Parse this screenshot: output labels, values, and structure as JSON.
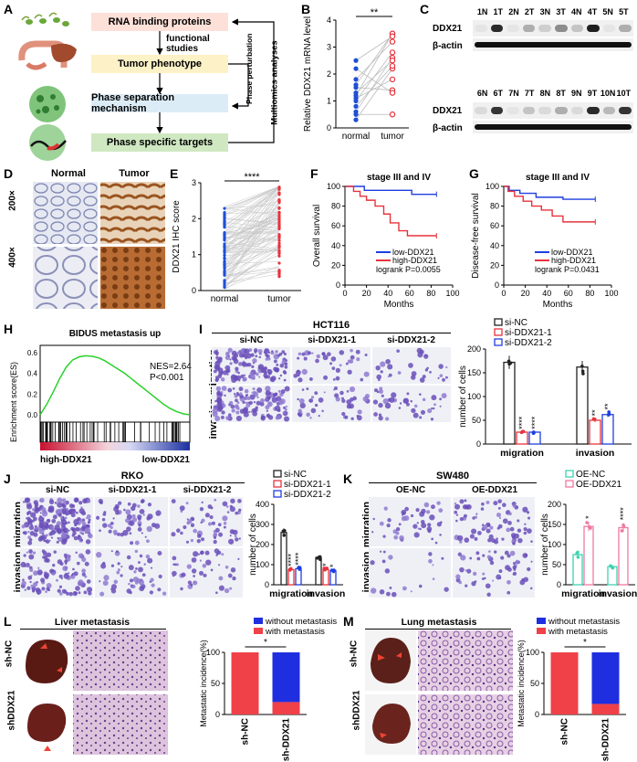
{
  "panel_letters": {
    "A": "A",
    "B": "B",
    "C": "C",
    "D": "D",
    "E": "E",
    "F": "F",
    "G": "G",
    "H": "H",
    "I": "I",
    "J": "J",
    "K": "K",
    "L": "L",
    "M": "M"
  },
  "panelA": {
    "boxes": [
      "RNA binding proteins",
      "Tumor phenotype",
      "Phase separation mechanism",
      "Phase specific targets"
    ],
    "functional_studies": [
      "functional",
      "studies"
    ],
    "side_labels": [
      "Phase perturbation",
      "Multiomics analyses"
    ],
    "colors": {
      "box1": "#fde0d8",
      "box2": "#fdf1c7",
      "box3": "#dcecf7",
      "box4": "#cfe8c2"
    }
  },
  "panelB": {
    "chart_data": {
      "type": "scatter",
      "categories": [
        "normal",
        "tumor"
      ],
      "ylabel": "Relative DDX21 mRNA level",
      "ylim": [
        0,
        4
      ],
      "yticks": [
        0,
        1,
        2,
        3,
        4
      ],
      "pairs": [
        [
          0.3,
          2.2
        ],
        [
          0.6,
          2.6
        ],
        [
          0.8,
          2.3
        ],
        [
          1.0,
          2.8
        ],
        [
          1.1,
          1.8
        ],
        [
          1.2,
          3.5
        ],
        [
          1.3,
          2.5
        ],
        [
          1.5,
          1.4
        ],
        [
          1.6,
          3.5
        ],
        [
          1.8,
          3.2
        ],
        [
          2.2,
          1.3
        ],
        [
          2.5,
          3.4
        ],
        [
          0.5,
          0.5
        ]
      ],
      "significance": "**",
      "colors": {
        "normal": "#1f4fd6",
        "tumor": "#e8323c"
      }
    }
  },
  "panelC": {
    "row1_lanes": [
      "1N",
      "1T",
      "2N",
      "2T",
      "3N",
      "3T",
      "4N",
      "4T",
      "5N",
      "5T"
    ],
    "row2_lanes": [
      "6N",
      "6T",
      "7N",
      "7T",
      "8N",
      "8T",
      "9N",
      "9T",
      "10N",
      "10T"
    ],
    "ddx21_1": [
      0.05,
      0.9,
      0.05,
      0.3,
      0.15,
      0.45,
      0.2,
      0.95,
      0.05,
      0.3
    ],
    "ddx21_2": [
      0.1,
      0.85,
      0.05,
      0.2,
      0.1,
      0.3,
      0.1,
      0.9,
      0.25,
      0.85
    ],
    "row_labels": [
      "DDX21",
      "β-actin"
    ]
  },
  "panelD": {
    "cols": [
      "Normal",
      "Tumor"
    ],
    "rows": [
      "200×",
      "400×"
    ]
  },
  "panelE": {
    "chart_data": {
      "type": "scatter",
      "categories": [
        "normal",
        "tumor"
      ],
      "ylabel": "DDX21 IHC score",
      "ylim": [
        0,
        3
      ],
      "yticks": [
        0,
        1,
        2,
        3
      ],
      "significance": "****",
      "colors": {
        "normal": "#1f4fd6",
        "tumor": "#e8323c"
      }
    }
  },
  "panelF": {
    "chart_data": {
      "type": "line",
      "title": "stage III and IV",
      "xlabel": "Months",
      "ylabel": "Overall survival",
      "xlim": [
        0,
        100
      ],
      "ylim": [
        0,
        100
      ],
      "xticks": [
        0,
        20,
        40,
        60,
        80,
        100
      ],
      "yticks": [
        0,
        20,
        40,
        60,
        80,
        100
      ],
      "series": [
        {
          "name": "low-DDX21",
          "color": "#1f3fe0",
          "x": [
            0,
            18,
            18,
            62,
            62,
            85
          ],
          "y": [
            100,
            100,
            96,
            96,
            92,
            92
          ]
        },
        {
          "name": "high-DDX21",
          "color": "#e8323c",
          "x": [
            0,
            8,
            8,
            14,
            14,
            20,
            20,
            28,
            28,
            36,
            36,
            42,
            42,
            50,
            50,
            58,
            58,
            85
          ],
          "y": [
            100,
            100,
            95,
            95,
            90,
            90,
            86,
            86,
            80,
            80,
            72,
            72,
            63,
            63,
            55,
            55,
            50,
            50
          ]
        }
      ],
      "annotation": "logrank P=0.0055"
    }
  },
  "panelG": {
    "chart_data": {
      "type": "line",
      "title": "stage III and IV",
      "xlabel": "Months",
      "ylabel": "Disease-free survival",
      "xlim": [
        0,
        100
      ],
      "ylim": [
        0,
        100
      ],
      "xticks": [
        0,
        20,
        40,
        60,
        80,
        100
      ],
      "yticks": [
        0,
        20,
        40,
        60,
        80,
        100
      ],
      "series": [
        {
          "name": "low-DDX21",
          "color": "#1f3fe0",
          "x": [
            0,
            5,
            5,
            15,
            15,
            30,
            30,
            55,
            55,
            85
          ],
          "y": [
            100,
            100,
            96,
            96,
            93,
            93,
            89,
            89,
            87,
            87
          ]
        },
        {
          "name": "high-DDX21",
          "color": "#e8323c",
          "x": [
            0,
            4,
            4,
            10,
            10,
            18,
            18,
            26,
            26,
            35,
            35,
            45,
            45,
            55,
            55,
            85
          ],
          "y": [
            100,
            100,
            95,
            95,
            90,
            90,
            85,
            85,
            80,
            80,
            76,
            76,
            70,
            70,
            64,
            64
          ]
        }
      ],
      "annotation": "logrank P=0.0431"
    }
  },
  "panelH": {
    "title": "BIDUS metastasis up",
    "ylabel": "Enrichment score(ES)",
    "yticks": [
      "0.6",
      "0.4",
      "0.2",
      "0.0"
    ],
    "nes": "NES=2.64",
    "p": "P<0.001",
    "left_label": "high-DDX21",
    "right_label": "low-DDX21",
    "curve": [
      0,
      0.1,
      0.22,
      0.35,
      0.46,
      0.53,
      0.56,
      0.57,
      0.565,
      0.55,
      0.52,
      0.48,
      0.44,
      0.4,
      0.35,
      0.3,
      0.25,
      0.2,
      0.15,
      0.1,
      0.06,
      0.03,
      0.01,
      0
    ]
  },
  "panelI": {
    "cell_line": "HCT116",
    "cols": [
      "si-NC",
      "si-DDX21-1",
      "si-DDX21-2"
    ],
    "rows": [
      "migration",
      "invasion"
    ],
    "chart_data": {
      "type": "bar",
      "categories": [
        "migration",
        "invasion"
      ],
      "ylabel": "number of cells",
      "ylim": [
        0,
        200
      ],
      "yticks": [
        0,
        50,
        100,
        150,
        200
      ],
      "series": [
        {
          "name": "si-NC",
          "values": [
            172,
            162
          ],
          "color": "#222222"
        },
        {
          "name": "si-DDX21-1",
          "values": [
            25,
            50
          ],
          "color": "#e8323c"
        },
        {
          "name": "si-DDX21-2",
          "values": [
            25,
            62
          ],
          "color": "#1f3fe0"
        }
      ],
      "sig": [
        [
          "****",
          "****"
        ],
        [
          "**",
          "**"
        ]
      ]
    }
  },
  "panelJ": {
    "cell_line": "RKO",
    "cols": [
      "si-NC",
      "si-DDX21-1",
      "si-DDX21-2"
    ],
    "rows": [
      "migration",
      "invasion"
    ],
    "chart_data": {
      "type": "bar",
      "categories": [
        "migration",
        "invasion"
      ],
      "ylabel": "number of cells",
      "ylim": [
        0,
        400
      ],
      "yticks": [
        0,
        100,
        200,
        300,
        400
      ],
      "series": [
        {
          "name": "si-NC",
          "values": [
            260,
            135
          ],
          "color": "#222222"
        },
        {
          "name": "si-DDX21-1",
          "values": [
            75,
            75
          ],
          "color": "#e8323c"
        },
        {
          "name": "si-DDX21-2",
          "values": [
            80,
            70
          ],
          "color": "#1f3fe0"
        }
      ],
      "sig": [
        [
          "****",
          "****"
        ],
        [
          "*",
          "*"
        ]
      ]
    }
  },
  "panelK": {
    "cell_line": "SW480",
    "cols": [
      "OE-NC",
      "OE-DDX21"
    ],
    "rows": [
      "migration",
      "invasion"
    ],
    "chart_data": {
      "type": "bar",
      "categories": [
        "migration",
        "invasion"
      ],
      "ylabel": "number of cells",
      "ylim": [
        0,
        200
      ],
      "yticks": [
        0,
        50,
        100,
        150,
        200
      ],
      "series": [
        {
          "name": "OE-NC",
          "values": [
            75,
            45
          ],
          "color": "#3fd3b0"
        },
        {
          "name": "OE-DDX21",
          "values": [
            145,
            142
          ],
          "color": "#f07aa0"
        }
      ],
      "sig": [
        "*",
        "****"
      ]
    }
  },
  "panelL": {
    "title": "Liver metastasis",
    "rows": [
      "sh-NC",
      "shDDX21"
    ],
    "chart_data": {
      "type": "bar",
      "categories": [
        "sh-NC",
        "sh-DDX21"
      ],
      "ylabel": "Metastatic incidence(%)",
      "ylim": [
        0,
        100
      ],
      "yticks": [
        0,
        50,
        100
      ],
      "series": [
        {
          "name": "without metastasis",
          "values": [
            0,
            80
          ],
          "color": "#1f2fe0"
        },
        {
          "name": "with metastasis",
          "values": [
            100,
            20
          ],
          "color": "#f04048"
        }
      ],
      "significance": "*"
    }
  },
  "panelM": {
    "title": "Lung metastasis",
    "rows": [
      "sh-NC",
      "shDDX21"
    ],
    "chart_data": {
      "type": "bar",
      "categories": [
        "sh-NC",
        "sh-DDX21"
      ],
      "ylabel": "Metastatic incidence(%)",
      "ylim": [
        0,
        100
      ],
      "yticks": [
        0,
        50,
        100
      ],
      "series": [
        {
          "name": "without metastasis",
          "values": [
            0,
            83
          ],
          "color": "#1f2fe0"
        },
        {
          "name": "with metastasis",
          "values": [
            100,
            17
          ],
          "color": "#f04048"
        }
      ],
      "significance": "*"
    }
  }
}
